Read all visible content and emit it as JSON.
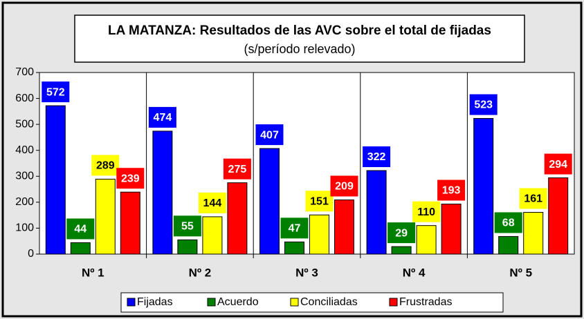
{
  "chart_data": {
    "type": "bar",
    "title": "LA MATANZA: Resultados de las AVC sobre el total de fijadas",
    "subtitle": "(s/período relevado)",
    "categories": [
      "Nº 1",
      "Nº 2",
      "Nº 3",
      "Nº 4",
      "Nº 5"
    ],
    "series": [
      {
        "name": "Fijadas",
        "color": "#0000ff",
        "values": [
          572,
          474,
          407,
          322,
          523
        ]
      },
      {
        "name": "Acuerdo",
        "color": "#008000",
        "values": [
          44,
          55,
          47,
          29,
          68
        ]
      },
      {
        "name": "Conciliadas",
        "color": "#ffff00",
        "values": [
          289,
          144,
          151,
          110,
          161
        ]
      },
      {
        "name": "Frustradas",
        "color": "#ff0000",
        "values": [
          239,
          275,
          209,
          193,
          294
        ]
      }
    ],
    "ylim": [
      0,
      700
    ],
    "yticks": [
      0,
      100,
      200,
      300,
      400,
      500,
      600,
      700
    ],
    "legend": "bottom"
  }
}
